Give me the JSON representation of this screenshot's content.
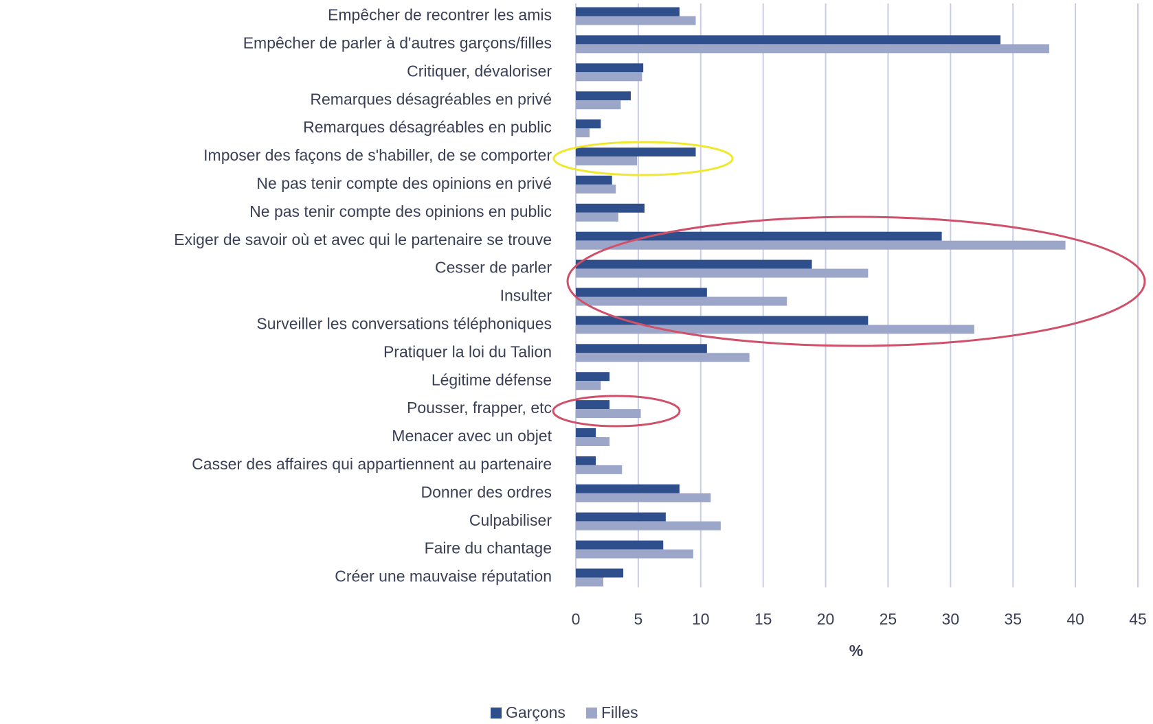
{
  "chart_data": {
    "type": "bar",
    "orientation": "horizontal",
    "categories": [
      "Empêcher de recontrer les amis",
      "Empêcher de parler à d'autres garçons/filles",
      "Critiquer, dévaloriser",
      "Remarques désagréables en privé",
      "Remarques désagréables en public",
      "Imposer des façons de s'habiller, de se comporter",
      "Ne pas tenir compte des opinions en privé",
      "Ne pas tenir compte des opinions en public",
      "Exiger de savoir où et avec qui le partenaire se trouve",
      "Cesser de parler",
      "Insulter",
      "Surveiller les conversations téléphoniques",
      "Pratiquer la loi du Talion",
      "Légitime défense",
      "Pousser, frapper, etc",
      "Menacer avec un objet",
      "Casser des affaires qui appartiennent au partenaire",
      "Donner des ordres",
      "Culpabiliser",
      "Faire du chantage",
      "Créer une mauvaise réputation"
    ],
    "series": [
      {
        "name": "Garçons",
        "color": "#2f4f8c",
        "values": [
          8.3,
          34,
          5.4,
          4.4,
          2.0,
          9.6,
          2.9,
          5.5,
          29.3,
          18.9,
          10.5,
          23.4,
          10.5,
          2.7,
          2.7,
          1.6,
          1.6,
          8.3,
          7.2,
          7.0,
          3.8
        ]
      },
      {
        "name": "Filles",
        "color": "#9ba6c9",
        "values": [
          9.6,
          37.9,
          5.3,
          3.6,
          1.1,
          4.9,
          3.2,
          3.4,
          39.2,
          23.4,
          16.9,
          31.9,
          13.9,
          2.0,
          5.2,
          2.7,
          3.7,
          10.8,
          11.6,
          9.4,
          2.2
        ]
      }
    ],
    "xlabel": "%",
    "xlim": [
      0,
      45
    ],
    "xticks": [
      0,
      5,
      10,
      15,
      20,
      25,
      30,
      35,
      40,
      45
    ],
    "grid": true,
    "legend": "bottom"
  }
}
